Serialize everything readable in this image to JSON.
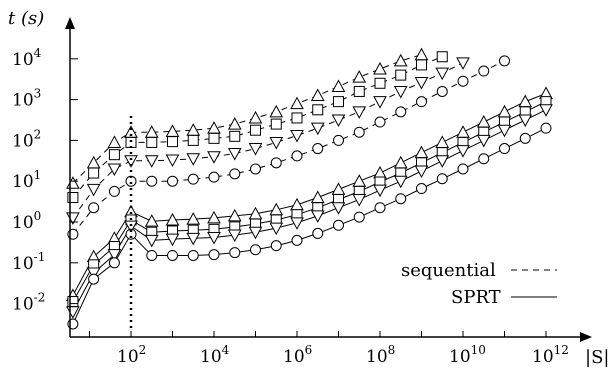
{
  "chart_data": {
    "type": "line",
    "xlabel": "|S|",
    "ylabel": "t (s)",
    "x_scale": "log",
    "y_scale": "log",
    "xlim_log10": [
      0.3,
      12.6
    ],
    "ylim_log10": [
      -2.6,
      4.2
    ],
    "x_ticks": [
      {
        "exp": 2,
        "base": "10",
        "sup": "2"
      },
      {
        "exp": 4,
        "base": "10",
        "sup": "4"
      },
      {
        "exp": 6,
        "base": "10",
        "sup": "6"
      },
      {
        "exp": 8,
        "base": "10",
        "sup": "8"
      },
      {
        "exp": 10,
        "base": "10",
        "sup": "10"
      },
      {
        "exp": 12,
        "base": "10",
        "sup": "12"
      }
    ],
    "y_ticks": [
      {
        "exp": -2,
        "base": "10",
        "sup": "-2"
      },
      {
        "exp": -1,
        "base": "10",
        "sup": "-1"
      },
      {
        "exp": 0,
        "base": "10",
        "sup": "0"
      },
      {
        "exp": 1,
        "base": "10",
        "sup": "1"
      },
      {
        "exp": 2,
        "base": "10",
        "sup": "2"
      },
      {
        "exp": 3,
        "base": "10",
        "sup": "3"
      },
      {
        "exp": 4,
        "base": "10",
        "sup": "4"
      }
    ],
    "vertical_marker_x_log10": 2,
    "legend": {
      "position": "bottom-right",
      "entries": [
        {
          "label": "sequential",
          "style": "dashed"
        },
        {
          "label": "SPRT",
          "style": "solid"
        }
      ]
    },
    "series": [
      {
        "group": "sequential",
        "marker": "triangle-up",
        "dashed": true,
        "x_log10": [
          0.6,
          1.1,
          1.6,
          2.0,
          2.5,
          3.0,
          3.5,
          4.0,
          4.5,
          5.0,
          5.5,
          6.0,
          6.5,
          7.0,
          7.5,
          8.0,
          8.5,
          9.0
        ],
        "y_log10": [
          0.95,
          1.45,
          1.95,
          2.2,
          2.2,
          2.22,
          2.25,
          2.3,
          2.4,
          2.55,
          2.7,
          2.9,
          3.1,
          3.32,
          3.55,
          3.75,
          3.95,
          4.1
        ]
      },
      {
        "group": "sequential",
        "marker": "square",
        "dashed": true,
        "x_log10": [
          0.6,
          1.1,
          1.6,
          2.0,
          2.5,
          3.0,
          3.5,
          4.0,
          4.5,
          5.0,
          5.5,
          6.0,
          6.5,
          7.0,
          7.5,
          8.0,
          8.5,
          9.0,
          9.5
        ],
        "y_log10": [
          0.6,
          1.2,
          1.65,
          1.95,
          1.95,
          1.97,
          2.0,
          2.05,
          2.1,
          2.25,
          2.4,
          2.55,
          2.75,
          2.95,
          3.2,
          3.4,
          3.6,
          3.85,
          4.05
        ]
      },
      {
        "group": "sequential",
        "marker": "triangle-down",
        "dashed": true,
        "x_log10": [
          0.6,
          1.1,
          1.6,
          2.0,
          2.5,
          3.0,
          3.5,
          4.0,
          4.5,
          5.0,
          5.5,
          6.0,
          6.5,
          7.0,
          7.5,
          8.0,
          8.5,
          9.0,
          9.5,
          10.0
        ],
        "y_log10": [
          0.1,
          0.8,
          1.3,
          1.5,
          1.5,
          1.52,
          1.55,
          1.6,
          1.68,
          1.8,
          1.95,
          2.12,
          2.3,
          2.5,
          2.7,
          2.95,
          3.2,
          3.42,
          3.65,
          3.9
        ]
      },
      {
        "group": "sequential",
        "marker": "circle",
        "dashed": true,
        "x_log10": [
          0.6,
          1.1,
          1.6,
          2.0,
          2.5,
          3.0,
          3.5,
          4.0,
          4.5,
          5.0,
          5.5,
          6.0,
          6.5,
          7.0,
          7.5,
          8.0,
          8.5,
          9.0,
          9.5,
          10.0,
          10.5,
          11.0
        ],
        "y_log10": [
          -0.3,
          0.35,
          0.75,
          1.0,
          1.0,
          1.0,
          1.05,
          1.1,
          1.18,
          1.3,
          1.45,
          1.62,
          1.8,
          2.0,
          2.2,
          2.45,
          2.7,
          2.95,
          3.2,
          3.45,
          3.7,
          3.95
        ]
      },
      {
        "group": "SPRT",
        "marker": "triangle-up",
        "dashed": false,
        "x_log10": [
          0.6,
          1.1,
          1.6,
          2.0,
          2.5,
          3.0,
          3.5,
          4.0,
          4.5,
          5.0,
          5.5,
          6.0,
          6.5,
          7.0,
          7.5,
          8.0,
          8.5,
          9.0,
          9.5,
          10.0,
          10.5,
          11.0,
          11.5,
          12.0
        ],
        "y_log10": [
          -1.8,
          -0.85,
          -0.4,
          0.25,
          0.02,
          0.05,
          0.07,
          0.1,
          0.15,
          0.2,
          0.3,
          0.42,
          0.6,
          0.8,
          1.0,
          1.2,
          1.45,
          1.7,
          1.95,
          2.2,
          2.45,
          2.7,
          2.95,
          3.15
        ]
      },
      {
        "group": "SPRT",
        "marker": "square",
        "dashed": false,
        "x_log10": [
          0.6,
          1.1,
          1.6,
          2.0,
          2.5,
          3.0,
          3.5,
          4.0,
          4.5,
          5.0,
          5.5,
          6.0,
          6.5,
          7.0,
          7.5,
          8.0,
          8.5,
          9.0,
          9.5,
          10.0,
          10.5,
          11.0,
          11.5,
          12.0
        ],
        "y_log10": [
          -1.95,
          -1.05,
          -0.6,
          0.05,
          -0.25,
          -0.22,
          -0.2,
          -0.18,
          -0.12,
          -0.05,
          0.05,
          0.18,
          0.35,
          0.55,
          0.75,
          0.98,
          1.2,
          1.45,
          1.7,
          1.95,
          2.2,
          2.45,
          2.7,
          2.95
        ]
      },
      {
        "group": "SPRT",
        "marker": "triangle-down",
        "dashed": false,
        "x_log10": [
          0.6,
          1.1,
          1.6,
          2.0,
          2.5,
          3.0,
          3.5,
          4.0,
          4.5,
          5.0,
          5.5,
          6.0,
          6.5,
          7.0,
          7.5,
          8.0,
          8.5,
          9.0,
          9.5,
          10.0,
          10.5,
          11.0,
          11.5,
          12.0
        ],
        "y_log10": [
          -2.2,
          -1.25,
          -0.8,
          -0.1,
          -0.45,
          -0.42,
          -0.4,
          -0.38,
          -0.32,
          -0.25,
          -0.15,
          -0.02,
          0.15,
          0.35,
          0.55,
          0.78,
          1.0,
          1.25,
          1.5,
          1.75,
          2.0,
          2.25,
          2.5,
          2.75
        ]
      },
      {
        "group": "SPRT",
        "marker": "circle",
        "dashed": false,
        "x_log10": [
          0.6,
          1.1,
          1.6,
          2.0,
          2.5,
          3.0,
          3.5,
          4.0,
          4.5,
          5.0,
          5.5,
          6.0,
          6.5,
          7.0,
          7.5,
          8.0,
          8.5,
          9.0,
          9.5,
          10.0,
          10.5,
          11.0,
          11.5,
          12.0
        ],
        "y_log10": [
          -2.5,
          -1.4,
          -1.0,
          -0.3,
          -0.82,
          -0.82,
          -0.82,
          -0.8,
          -0.75,
          -0.68,
          -0.58,
          -0.45,
          -0.28,
          -0.08,
          0.12,
          0.35,
          0.57,
          0.82,
          1.06,
          1.3,
          1.55,
          1.8,
          2.05,
          2.3
        ]
      }
    ]
  }
}
